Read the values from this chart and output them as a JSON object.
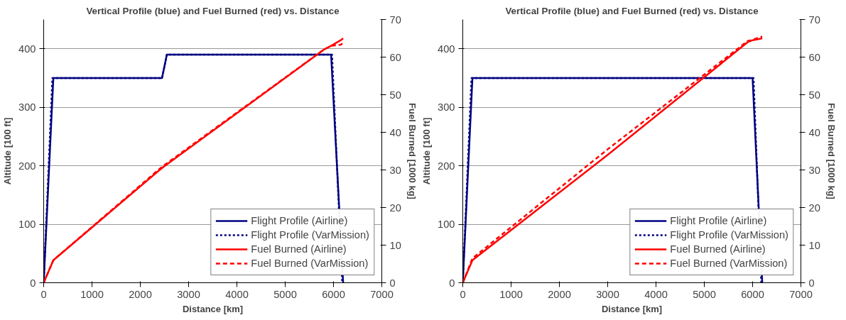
{
  "chart_data": [
    {
      "type": "line",
      "title": "Vertical Profile (blue) and Fuel Burned (red) vs. Distance",
      "xlabel": "Distance [km]",
      "ylabel": "Altitude [100 ft]",
      "y2label": "Fuel Burned [1000 kg]",
      "xlim": [
        0,
        7000
      ],
      "xticks": [
        0,
        1000,
        2000,
        3000,
        4000,
        5000,
        6000,
        7000
      ],
      "ylim": [
        0,
        450
      ],
      "yticks": [
        0,
        100,
        200,
        300,
        400
      ],
      "y2lim": [
        0,
        70
      ],
      "y2ticks": [
        0,
        10,
        20,
        30,
        40,
        50,
        60,
        70
      ],
      "grid": "y",
      "legend": "bottom right",
      "marker": "none",
      "series": [
        {
          "name": "Flight Profile (Airline)",
          "color": "#000080",
          "line_style": "solid",
          "x": [
            0,
            200,
            2450,
            2550,
            5950,
            6200
          ],
          "values": [
            0,
            350,
            350,
            390,
            390,
            0
          ]
        },
        {
          "name": "Flight Profile (VarMission)",
          "color": "#000080",
          "line_style": "dotted",
          "x": [
            0,
            180,
            2450,
            2550,
            5970,
            6180
          ],
          "values": [
            0,
            350,
            350,
            390,
            390,
            0
          ]
        },
        {
          "name": "Fuel Burned (Airline)",
          "color": "#ff0000",
          "line_style": "solid",
          "axis": "y2",
          "x": [
            0,
            200,
            2400,
            2500,
            5800,
            5950,
            6150,
            6200
          ],
          "values": [
            0,
            6,
            30,
            31,
            62,
            63,
            64.5,
            65
          ]
        },
        {
          "name": "Fuel Burned (VarMission)",
          "color": "#ff0000",
          "line_style": "dashed",
          "axis": "y2",
          "x": [
            0,
            200,
            2400,
            2500,
            5800,
            5950,
            6150,
            6200
          ],
          "values": [
            0,
            6,
            30.3,
            31.3,
            62,
            63,
            63.3,
            63.8
          ]
        }
      ]
    },
    {
      "type": "line",
      "title": "Vertical Profile (blue) and Fuel Burned (red) vs. Distance",
      "xlabel": "Distance [km]",
      "ylabel": "Altitude [100 ft]",
      "y2label": "Fuel Burned [1000 kg]",
      "xlim": [
        0,
        7000
      ],
      "xticks": [
        0,
        1000,
        2000,
        3000,
        4000,
        5000,
        6000,
        7000
      ],
      "ylim": [
        0,
        450
      ],
      "yticks": [
        0,
        100,
        200,
        300,
        400
      ],
      "y2lim": [
        0,
        70
      ],
      "y2ticks": [
        0,
        10,
        20,
        30,
        40,
        50,
        60,
        70
      ],
      "grid": "y",
      "legend": "bottom right",
      "marker": "none",
      "series": [
        {
          "name": "Flight Profile (Airline)",
          "color": "#000080",
          "line_style": "solid",
          "x": [
            0,
            200,
            6000,
            6200
          ],
          "values": [
            0,
            350,
            350,
            0
          ]
        },
        {
          "name": "Flight Profile (VarMission)",
          "color": "#000080",
          "line_style": "dotted",
          "x": [
            0,
            180,
            6020,
            6180
          ],
          "values": [
            0,
            350,
            350,
            0
          ]
        },
        {
          "name": "Fuel Burned (Airline)",
          "color": "#ff0000",
          "line_style": "solid",
          "axis": "y2",
          "x": [
            0,
            200,
            3000,
            5900,
            6000,
            6200
          ],
          "values": [
            0,
            6,
            34,
            64,
            64.5,
            65
          ]
        },
        {
          "name": "Fuel Burned (VarMission)",
          "color": "#ff0000",
          "line_style": "dashed",
          "axis": "y2",
          "x": [
            0,
            200,
            3000,
            5900,
            6000,
            6200
          ],
          "values": [
            0,
            6.5,
            35.5,
            64.3,
            64.6,
            65.5
          ]
        }
      ]
    }
  ]
}
